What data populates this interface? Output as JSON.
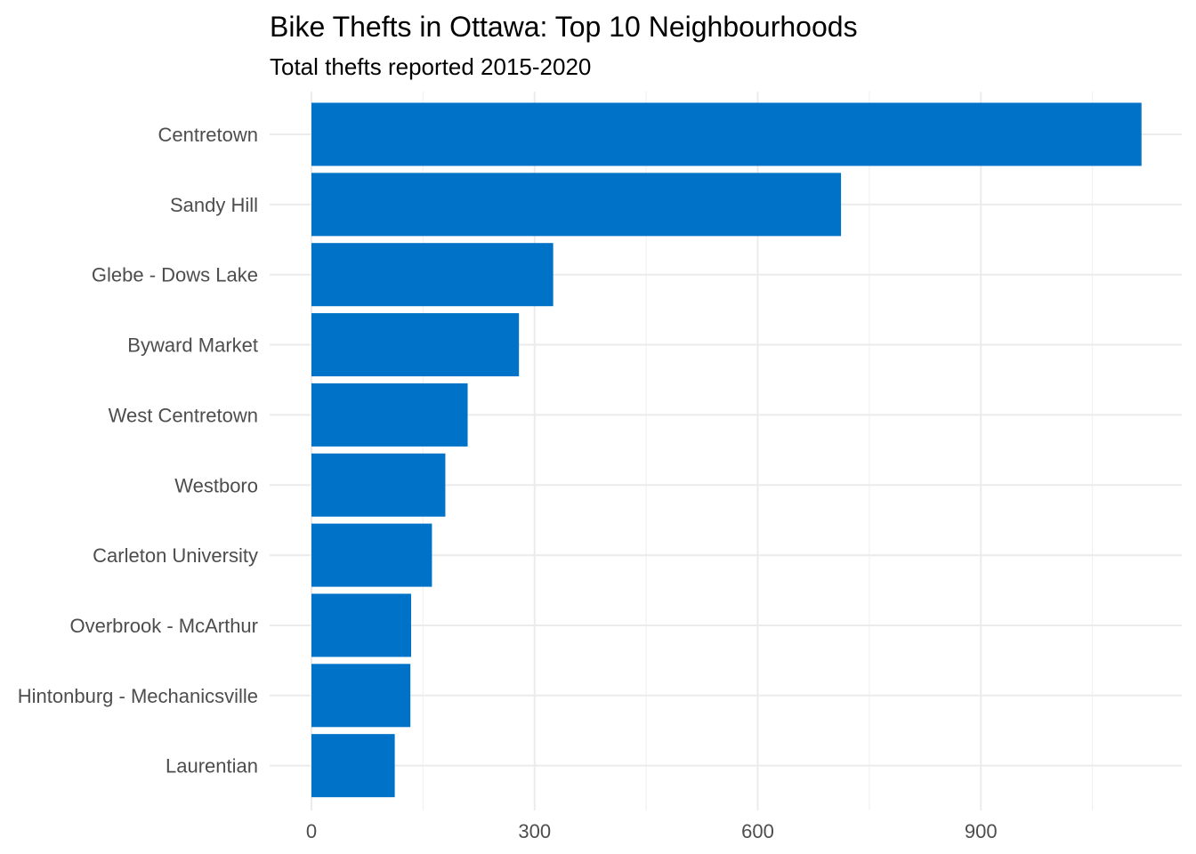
{
  "chart_data": {
    "type": "bar",
    "orientation": "horizontal",
    "title": "Bike Thefts in Ottawa: Top 10 Neighbourhoods",
    "subtitle": "Total thefts reported 2015-2020",
    "xlabel": "",
    "ylabel": "",
    "categories": [
      "Centretown",
      "Sandy Hill",
      "Glebe - Dows Lake",
      "Byward Market",
      "West Centretown",
      "Westboro",
      "Carleton University",
      "Overbrook - McArthur",
      "Hintonburg - Mechanicsville",
      "Laurentian"
    ],
    "values": [
      1116,
      712,
      325,
      279,
      210,
      180,
      162,
      134,
      133,
      112
    ],
    "xlim": [
      0,
      1170
    ],
    "x_ticks": [
      0,
      300,
      600,
      900
    ],
    "x_tick_labels": [
      "0",
      "300",
      "600",
      "900"
    ],
    "x_minor_ticks": [
      150,
      450,
      750,
      1050
    ],
    "grid": true,
    "legend": "none",
    "bar_color": "#0073c8"
  }
}
